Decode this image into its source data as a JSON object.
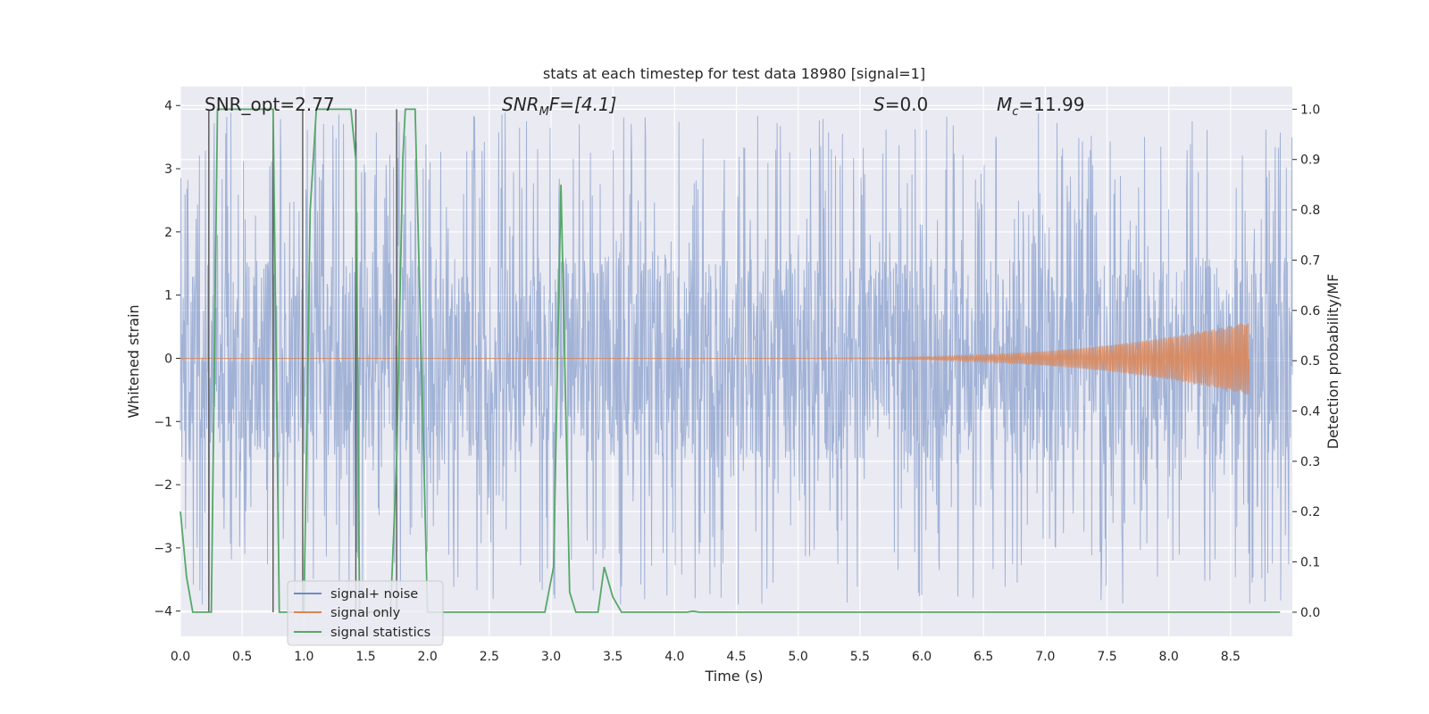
{
  "colors": {
    "background": "#eaeaf2",
    "grid": "#ffffff",
    "noise": "#6f8cc3",
    "signal": "#dd8452",
    "stats": "#55a868",
    "vlines": "#555555"
  },
  "chart_data": {
    "type": "line",
    "title": "stats at each timestep for test data 18980 [signal=1]",
    "xlabel": "Time (s)",
    "ylabel_left": "Whitened strain",
    "ylabel_right": "Detection probability/MF",
    "xlim": [
      0.0,
      9.0
    ],
    "ylim_left": [
      -4.4,
      4.3
    ],
    "ylim_right": [
      -0.048,
      1.045
    ],
    "x_ticks": [
      "0.0",
      "0.5",
      "1.0",
      "1.5",
      "2.0",
      "2.5",
      "3.0",
      "3.5",
      "4.0",
      "4.5",
      "5.0",
      "5.5",
      "6.0",
      "6.5",
      "7.0",
      "7.5",
      "8.0",
      "8.5"
    ],
    "y_left_ticks": [
      "4",
      "3",
      "2",
      "1",
      "0",
      "−1",
      "−2",
      "−3",
      "−4"
    ],
    "y_right_ticks": [
      "1.0",
      "0.9",
      "0.8",
      "0.7",
      "0.6",
      "0.5",
      "0.4",
      "0.3",
      "0.2",
      "0.1",
      "0.0"
    ],
    "annotations": {
      "snr_opt": "SNR_opt=2.77",
      "snr_mf_main": "SNR",
      "snr_mf_sub": "M",
      "snr_mf_rest": "F=[4.1]",
      "s_main": "S",
      "s_rest": "=0.0",
      "mc_main": "M",
      "mc_sub": "c",
      "mc_rest": "=11.99"
    },
    "legend": {
      "position": "lower-left",
      "entries": [
        "signal+ noise",
        "signal only",
        "signal statistics"
      ]
    },
    "series": [
      {
        "name": "signal+ noise",
        "axis": "left",
        "description_values": "whitened strain noise, approx. uniform band -1.6..1.6 with spikes to about ±3.9",
        "x_range": [
          0.0,
          9.0
        ],
        "envelope": [
          -1.6,
          1.6
        ],
        "peak_range": [
          -3.9,
          3.9
        ]
      },
      {
        "name": "signal only",
        "axis": "left",
        "chirp_start": 4.5,
        "chirp_end": 8.65,
        "peak_amplitude": 0.58
      },
      {
        "name": "signal statistics",
        "axis": "right",
        "x": [
          0.0,
          0.05,
          0.1,
          0.15,
          0.2,
          0.25,
          0.3,
          0.35,
          0.4,
          0.5,
          0.6,
          0.7,
          0.75,
          0.8,
          0.85,
          0.9,
          0.95,
          1.0,
          1.05,
          1.1,
          1.2,
          1.3,
          1.38,
          1.42,
          1.45,
          1.5,
          1.6,
          1.7,
          1.75,
          1.8,
          1.82,
          1.85,
          1.9,
          1.95,
          2.0,
          2.05,
          2.1,
          2.2,
          2.3,
          2.5,
          2.75,
          2.95,
          3.02,
          3.08,
          3.15,
          3.2,
          3.3,
          3.38,
          3.43,
          3.5,
          3.57,
          3.65,
          3.8,
          4.0,
          4.1,
          4.15,
          4.2,
          4.5,
          5.0,
          6.0,
          7.0,
          8.0,
          8.9
        ],
        "values": [
          0.2,
          0.07,
          0.0,
          0.0,
          0.0,
          0.0,
          1.0,
          1.0,
          1.0,
          1.0,
          1.0,
          1.0,
          1.0,
          0.0,
          0.0,
          0.0,
          0.0,
          0.0,
          0.8,
          1.0,
          1.0,
          1.0,
          1.0,
          0.9,
          0.0,
          0.0,
          0.0,
          0.0,
          0.3,
          0.9,
          1.0,
          1.0,
          1.0,
          0.5,
          0.0,
          0.0,
          0.0,
          0.0,
          0.0,
          0.0,
          0.0,
          0.0,
          0.09,
          0.85,
          0.04,
          0.0,
          0.0,
          0.0,
          0.09,
          0.03,
          0.0,
          0.0,
          0.0,
          0.0,
          0.0,
          0.002,
          0.0,
          0.0,
          0.0,
          0.0,
          0.0,
          0.0,
          0.0
        ]
      }
    ],
    "vertical_markers": [
      {
        "x": 0.23,
        "from_right": 0.0,
        "to_right": 1.0
      },
      {
        "x": 0.75,
        "from_right": 0.0,
        "to_right": 1.0
      },
      {
        "x": 0.99,
        "from_right": 0.0,
        "to_right": 1.0
      },
      {
        "x": 1.42,
        "from_right": 0.0,
        "to_right": 1.0
      },
      {
        "x": 1.75,
        "from_right": 0.0,
        "to_right": 1.0
      }
    ]
  }
}
